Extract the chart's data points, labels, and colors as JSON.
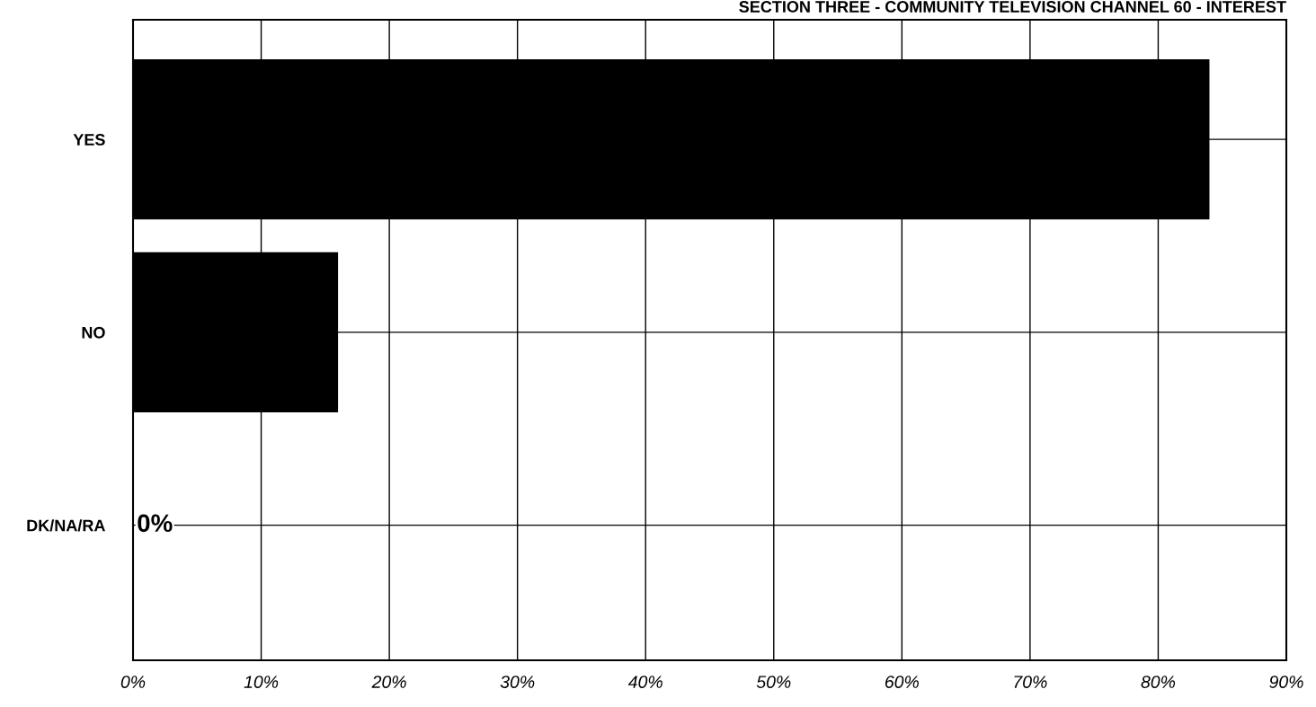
{
  "chart_data": {
    "type": "bar",
    "orientation": "horizontal",
    "title": "SECTION THREE - COMMUNITY TELEVISION CHANNEL 60 - INTEREST",
    "categories": [
      "YES",
      "NO",
      "DK/NA/RA"
    ],
    "values": [
      84,
      16,
      0
    ],
    "value_labels": [
      null,
      null,
      "0%"
    ],
    "color": "#000000",
    "xlim": [
      0,
      90
    ],
    "xticks": [
      {
        "value": 0,
        "label": "0%"
      },
      {
        "value": 10,
        "label": "10%"
      },
      {
        "value": 20,
        "label": "20%"
      },
      {
        "value": 30,
        "label": "30%"
      },
      {
        "value": 40,
        "label": "40%"
      },
      {
        "value": 50,
        "label": "50%"
      },
      {
        "value": 60,
        "label": "60%"
      },
      {
        "value": 70,
        "label": "70%"
      },
      {
        "value": 80,
        "label": "80%"
      },
      {
        "value": 90,
        "label": "90%"
      }
    ],
    "grid": true
  }
}
